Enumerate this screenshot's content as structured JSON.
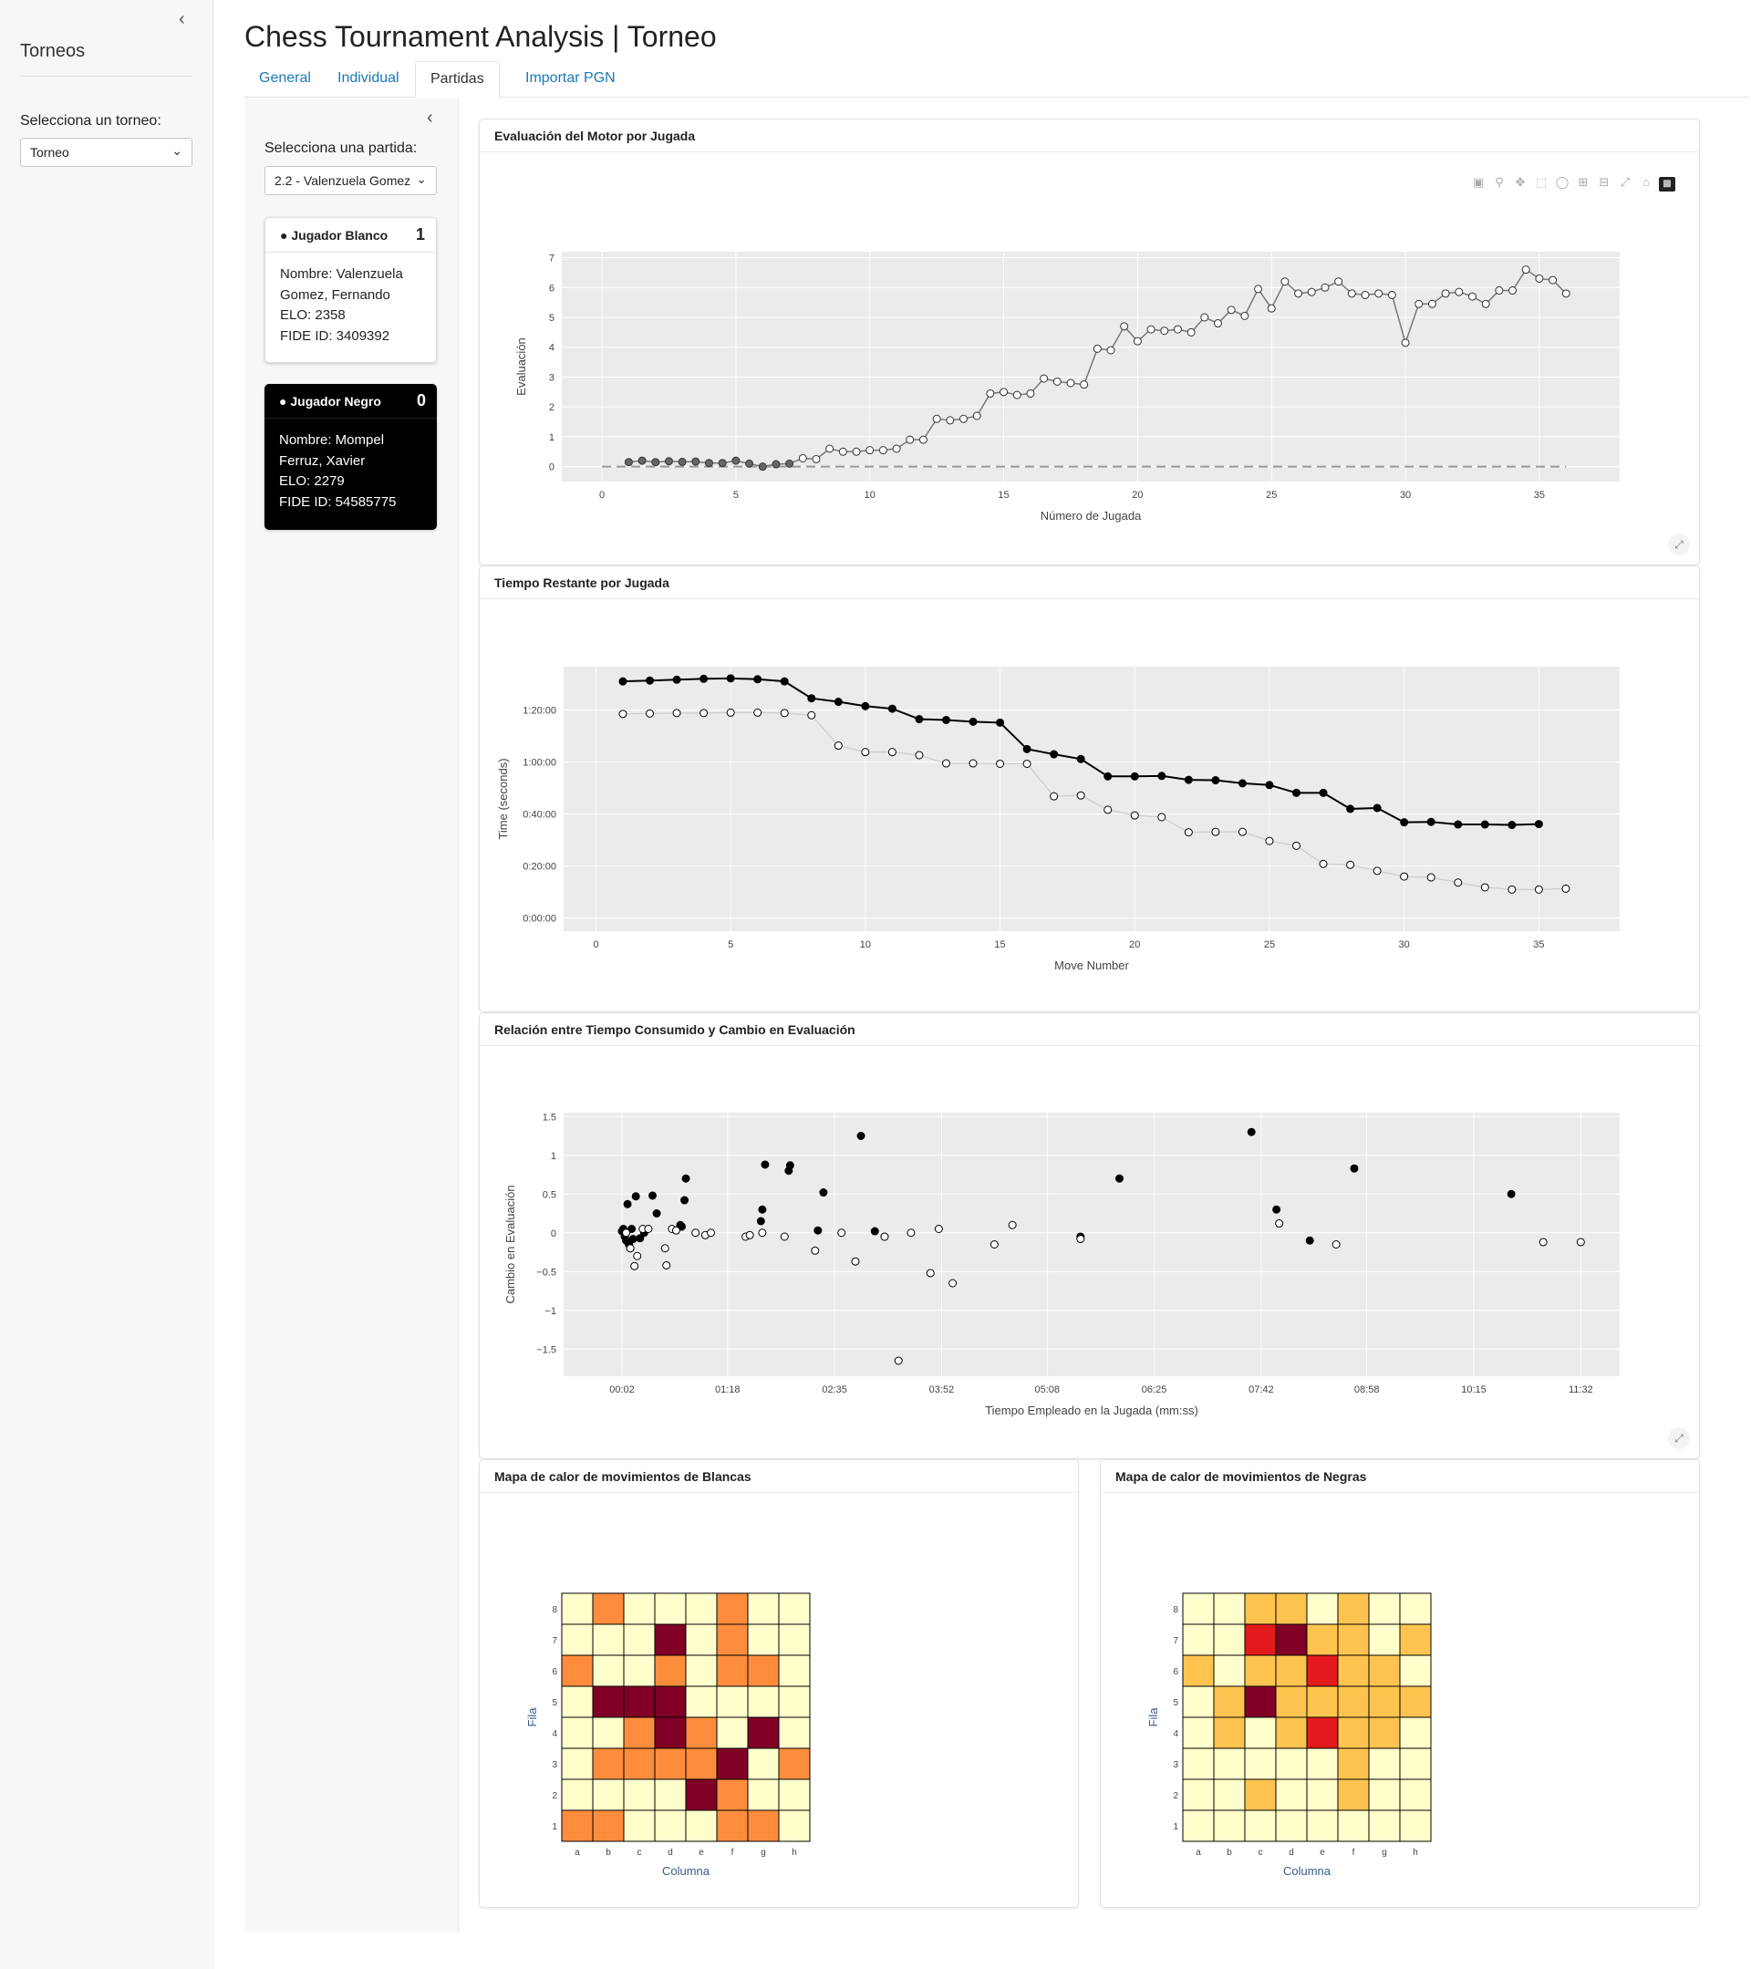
{
  "sidebar": {
    "title": "Torneos",
    "select_label": "Selecciona un torneo:",
    "select_value": "Torneo"
  },
  "app": {
    "title": "Chess Tournament Analysis | Torneo"
  },
  "tabs": [
    {
      "label": "General",
      "active": false
    },
    {
      "label": "Individual",
      "active": false
    },
    {
      "label": "Partidas",
      "active": true
    },
    {
      "label": "Importar PGN",
      "active": false
    }
  ],
  "game_sidebar": {
    "select_label": "Selecciona una partida:",
    "select_value": "2.2 - Valenzuela Gomez",
    "white": {
      "header": "Jugador Blanco",
      "score": "1",
      "name": "Nombre: Valenzuela Gomez, Fernando",
      "elo": "ELO: 2358",
      "fide": "FIDE ID: 3409392"
    },
    "black": {
      "header": "Jugador Negro",
      "score": "0",
      "name": "Nombre: Mompel Ferruz, Xavier",
      "elo": "ELO: 2279",
      "fide": "FIDE ID: 54585775"
    }
  },
  "cards": {
    "eval_title": "Evaluación del Motor por Jugada",
    "time_title": "Tiempo Restante por Jugada",
    "scatter_title": "Relación entre Tiempo Consumido y Cambio en Evaluación",
    "heat_white_title": "Mapa de calor de movimientos de Blancas",
    "heat_black_title": "Mapa de calor de movimientos de Negras"
  },
  "icons": {
    "sidebar_collapse": "chevron-left-icon",
    "user": "user-icon",
    "expand": "expand-icon",
    "modebar": [
      "camera-icon",
      "zoom-icon",
      "pan-icon",
      "box-select-icon",
      "lasso-icon",
      "zoom-in-icon",
      "zoom-out-icon",
      "autoscale-icon",
      "home-icon",
      "plotly-logo-icon"
    ]
  },
  "chart_data": [
    {
      "type": "line",
      "title": "",
      "xlabel": "Número de Jugada",
      "ylabel": "Evaluación",
      "xlim": [
        -1.5,
        38
      ],
      "ylim": [
        -0.5,
        7.2
      ],
      "x_ticks": [
        0,
        5,
        10,
        15,
        20,
        25,
        30,
        35
      ],
      "y_ticks": [
        0,
        1,
        2,
        3,
        4,
        5,
        6,
        7
      ],
      "reference_line": 0,
      "series": [
        {
          "x": [
            1,
            1.5,
            2,
            2.5,
            3,
            3.5,
            4,
            4.5,
            5,
            5.5,
            6,
            6.5,
            7,
            7.5,
            8,
            8.5,
            9,
            9.5,
            10,
            10.5,
            11,
            11.5,
            12,
            12.5,
            13,
            13.5,
            14,
            14.5,
            15,
            15.5,
            16,
            16.5,
            17,
            17.5,
            18,
            18.5,
            19,
            19.5,
            20,
            20.5,
            21,
            21.5,
            22,
            22.5,
            23,
            23.5,
            24,
            24.5,
            25,
            25.5,
            26,
            26.5,
            27,
            27.5,
            28,
            28.5,
            29,
            29.5,
            30,
            30.5,
            31,
            31.5,
            32,
            32.5,
            33,
            33.5,
            34,
            34.5,
            35,
            35.5,
            36
          ],
          "y": [
            0.15,
            0.2,
            0.15,
            0.18,
            0.16,
            0.17,
            0.12,
            0.12,
            0.2,
            0.1,
            0.0,
            0.08,
            0.1,
            0.28,
            0.25,
            0.6,
            0.5,
            0.5,
            0.55,
            0.55,
            0.6,
            0.9,
            0.9,
            1.6,
            1.55,
            1.6,
            1.7,
            2.45,
            2.5,
            2.4,
            2.45,
            2.95,
            2.85,
            2.8,
            2.75,
            3.95,
            3.9,
            4.7,
            4.2,
            4.6,
            4.55,
            4.6,
            4.5,
            5.0,
            4.8,
            5.25,
            5.05,
            5.95,
            5.3,
            6.2,
            5.8,
            5.85,
            6.0,
            6.2,
            5.8,
            5.75,
            5.8,
            5.75,
            4.15,
            5.45,
            5.45,
            5.8,
            5.85,
            5.7,
            5.45,
            5.9,
            5.9,
            6.6,
            6.3,
            6.25,
            5.8
          ],
          "filled_x_max": 7
        }
      ]
    },
    {
      "type": "line",
      "title": "",
      "xlabel": "Move Number",
      "ylabel": "Time (seconds)",
      "xlim": [
        -1.2,
        38
      ],
      "ylim": [
        -300,
        5800
      ],
      "x_ticks": [
        0,
        5,
        10,
        15,
        20,
        25,
        30,
        35
      ],
      "y_ticks": [
        0,
        1200,
        2400,
        3600,
        4800
      ],
      "y_tick_labels": [
        "0:00:00",
        "0:20:00",
        "0:40:00",
        "1:00:00",
        "1:20:00"
      ],
      "series": [
        {
          "name": "",
          "color": "#000000",
          "filled": true,
          "x": [
            1,
            2,
            3,
            4,
            5,
            6,
            7,
            8,
            9,
            10,
            11,
            12,
            13,
            14,
            15,
            16,
            17,
            18,
            19,
            20,
            21,
            22,
            23,
            24,
            25,
            26,
            27,
            28,
            29,
            30,
            31,
            32,
            33,
            34,
            35
          ],
          "y": [
            5460,
            5480,
            5500,
            5520,
            5530,
            5510,
            5460,
            5070,
            4990,
            4890,
            4830,
            4590,
            4570,
            4530,
            4510,
            3900,
            3780,
            3670,
            3270,
            3270,
            3280,
            3190,
            3180,
            3110,
            3070,
            2890,
            2890,
            2520,
            2540,
            2210,
            2220,
            2160,
            2160,
            2150,
            2170
          ]
        },
        {
          "name": "",
          "color": "#aaaaaa",
          "filled": false,
          "x": [
            1,
            2,
            3,
            4,
            5,
            6,
            7,
            8,
            9,
            10,
            11,
            12,
            13,
            14,
            15,
            16,
            17,
            18,
            19,
            20,
            21,
            22,
            23,
            24,
            25,
            26,
            27,
            28,
            29,
            30,
            31,
            32,
            33,
            34,
            35,
            36
          ],
          "y": [
            4710,
            4720,
            4730,
            4730,
            4740,
            4740,
            4730,
            4680,
            3980,
            3830,
            3830,
            3760,
            3570,
            3570,
            3560,
            3560,
            2810,
            2830,
            2500,
            2370,
            2330,
            1980,
            1990,
            1990,
            1780,
            1670,
            1250,
            1230,
            1090,
            960,
            940,
            820,
            710,
            660,
            660,
            680
          ]
        }
      ]
    },
    {
      "type": "scatter",
      "title": "",
      "xlabel": "Tiempo Empleado en la Jugada (mm:ss)",
      "ylabel": "Cambio en Evaluación",
      "xlim": [
        -40,
        720
      ],
      "ylim": [
        -1.85,
        1.55
      ],
      "x_ticks": [
        2,
        78,
        155,
        232,
        308,
        385,
        462,
        538,
        615,
        692
      ],
      "x_tick_labels": [
        "00:02",
        "01:18",
        "02:35",
        "03:52",
        "05:08",
        "06:25",
        "07:42",
        "08:58",
        "10:15",
        "11:32"
      ],
      "y_ticks": [
        -1.5,
        -1,
        -0.5,
        0,
        0.5,
        1,
        1.5
      ],
      "series": [
        {
          "name": "",
          "filled": true,
          "points": [
            [
              2,
              0.02
            ],
            [
              3,
              0.05
            ],
            [
              4,
              -0.05
            ],
            [
              5,
              -0.1
            ],
            [
              6,
              0.37
            ],
            [
              7,
              -0.15
            ],
            [
              8,
              -0.2
            ],
            [
              9,
              0.05
            ],
            [
              10,
              -0.08
            ],
            [
              12,
              0.47
            ],
            [
              15,
              -0.07
            ],
            [
              18,
              0.0
            ],
            [
              24,
              0.48
            ],
            [
              27,
              0.25
            ],
            [
              44,
              0.1
            ],
            [
              45,
              0.08
            ],
            [
              47,
              0.42
            ],
            [
              48,
              0.7
            ],
            [
              102,
              0.15
            ],
            [
              103,
              0.3
            ],
            [
              105,
              0.88
            ],
            [
              122,
              0.8
            ],
            [
              123,
              0.87
            ],
            [
              143,
              0.03
            ],
            [
              147,
              0.52
            ],
            [
              174,
              1.25
            ],
            [
              184,
              0.02
            ],
            [
              191,
              -0.05
            ],
            [
              360,
              0.7
            ],
            [
              332,
              -0.05
            ],
            [
              455,
              1.3
            ],
            [
              473,
              0.3
            ],
            [
              497,
              -0.1
            ],
            [
              529,
              0.83
            ],
            [
              642,
              0.5
            ]
          ]
        },
        {
          "name": "",
          "filled": false,
          "points": [
            [
              5,
              0.0
            ],
            [
              8,
              -0.2
            ],
            [
              11,
              -0.43
            ],
            [
              13,
              -0.3
            ],
            [
              17,
              0.05
            ],
            [
              21,
              0.05
            ],
            [
              33,
              -0.2
            ],
            [
              34,
              -0.42
            ],
            [
              38,
              0.05
            ],
            [
              41,
              0.03
            ],
            [
              55,
              0.0
            ],
            [
              62,
              -0.03
            ],
            [
              66,
              0.0
            ],
            [
              91,
              -0.05
            ],
            [
              94,
              -0.03
            ],
            [
              103,
              0.0
            ],
            [
              119,
              -0.05
            ],
            [
              141,
              -0.23
            ],
            [
              160,
              0.0
            ],
            [
              170,
              -0.37
            ],
            [
              191,
              -0.05
            ],
            [
              201,
              -1.65
            ],
            [
              210,
              0.0
            ],
            [
              224,
              -0.52
            ],
            [
              230,
              0.05
            ],
            [
              240,
              -0.65
            ],
            [
              270,
              -0.15
            ],
            [
              283,
              0.1
            ],
            [
              332,
              -0.08
            ],
            [
              475,
              0.12
            ],
            [
              516,
              -0.15
            ],
            [
              665,
              -0.12
            ],
            [
              692,
              -0.12
            ]
          ]
        }
      ]
    },
    {
      "type": "heatmap",
      "title": "",
      "xlabel": "Columna",
      "ylabel": "Fila",
      "x_categories": [
        "a",
        "b",
        "c",
        "d",
        "e",
        "f",
        "g",
        "h"
      ],
      "y_categories": [
        "1",
        "2",
        "3",
        "4",
        "5",
        "6",
        "7",
        "8"
      ],
      "levels": [
        "#ffffcc",
        "#fd8d3c",
        "#e31a1c",
        "#800026"
      ],
      "z_rank8_to_rank1": [
        [
          0,
          1,
          0,
          0,
          0,
          1,
          0,
          0
        ],
        [
          0,
          0,
          0,
          3,
          0,
          1,
          0,
          0
        ],
        [
          1,
          0,
          0,
          1,
          0,
          1,
          1,
          0
        ],
        [
          0,
          3,
          3,
          3,
          0,
          0,
          0,
          0
        ],
        [
          0,
          0,
          1,
          3,
          1,
          0,
          3,
          0
        ],
        [
          0,
          1,
          1,
          1,
          1,
          3,
          0,
          1
        ],
        [
          0,
          0,
          0,
          0,
          3,
          1,
          0,
          0
        ],
        [
          1,
          1,
          0,
          0,
          0,
          1,
          1,
          0
        ]
      ]
    },
    {
      "type": "heatmap",
      "title": "",
      "xlabel": "Columna",
      "ylabel": "Fila",
      "x_categories": [
        "a",
        "b",
        "c",
        "d",
        "e",
        "f",
        "g",
        "h"
      ],
      "y_categories": [
        "1",
        "2",
        "3",
        "4",
        "5",
        "6",
        "7",
        "8"
      ],
      "levels": [
        "#ffffcc",
        "#fec44f",
        "#fd8d3c",
        "#e31a1c",
        "#800026"
      ],
      "z_rank8_to_rank1": [
        [
          0,
          0,
          1,
          1,
          0,
          1,
          0,
          0
        ],
        [
          0,
          0,
          3,
          4,
          1,
          1,
          0,
          1
        ],
        [
          1,
          0,
          1,
          1,
          3,
          1,
          1,
          0
        ],
        [
          0,
          1,
          4,
          1,
          1,
          1,
          1,
          1
        ],
        [
          0,
          1,
          0,
          1,
          3,
          1,
          1,
          0
        ],
        [
          0,
          0,
          0,
          0,
          0,
          1,
          0,
          0
        ],
        [
          0,
          0,
          1,
          0,
          0,
          1,
          0,
          0
        ],
        [
          0,
          0,
          0,
          0,
          0,
          0,
          0,
          0
        ]
      ]
    }
  ]
}
